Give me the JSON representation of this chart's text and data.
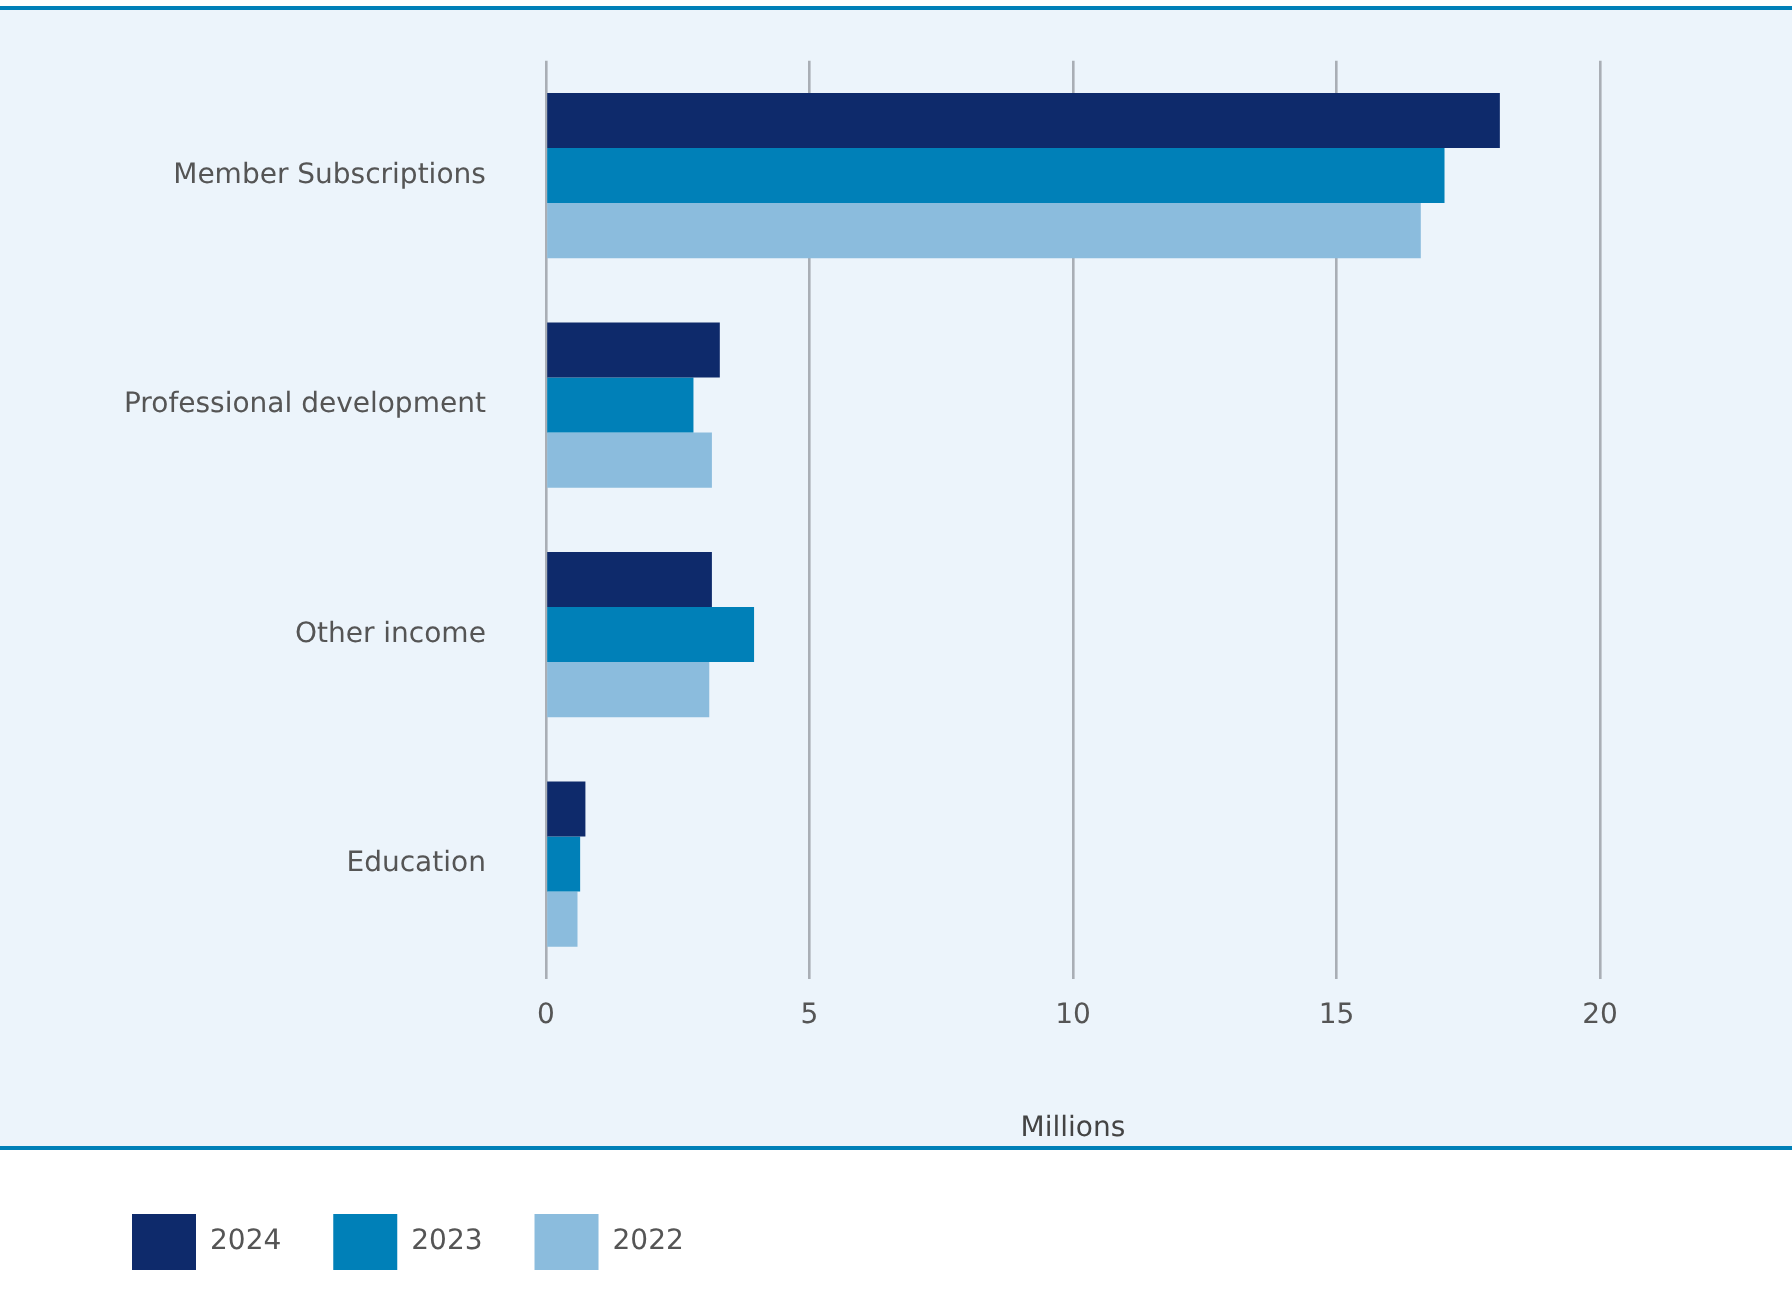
{
  "chart_data": {
    "type": "bar",
    "orientation": "horizontal",
    "xlabel": "Millions",
    "categories": [
      "Member Subscriptions",
      "Professional development",
      "Other income",
      "Education"
    ],
    "series": [
      {
        "name": "2024",
        "color": "#0e2a6b",
        "values": [
          18.1,
          3.3,
          3.15,
          0.75
        ]
      },
      {
        "name": "2023",
        "color": "#0080b8",
        "values": [
          17.05,
          2.8,
          3.95,
          0.65
        ]
      },
      {
        "name": "2022",
        "color": "#8bbcdd",
        "values": [
          16.6,
          3.15,
          3.1,
          0.6
        ]
      }
    ],
    "xlim": [
      0,
      20
    ],
    "xticks": [
      0,
      5,
      10,
      15,
      20
    ],
    "grid": "x",
    "legend": "bottom"
  }
}
